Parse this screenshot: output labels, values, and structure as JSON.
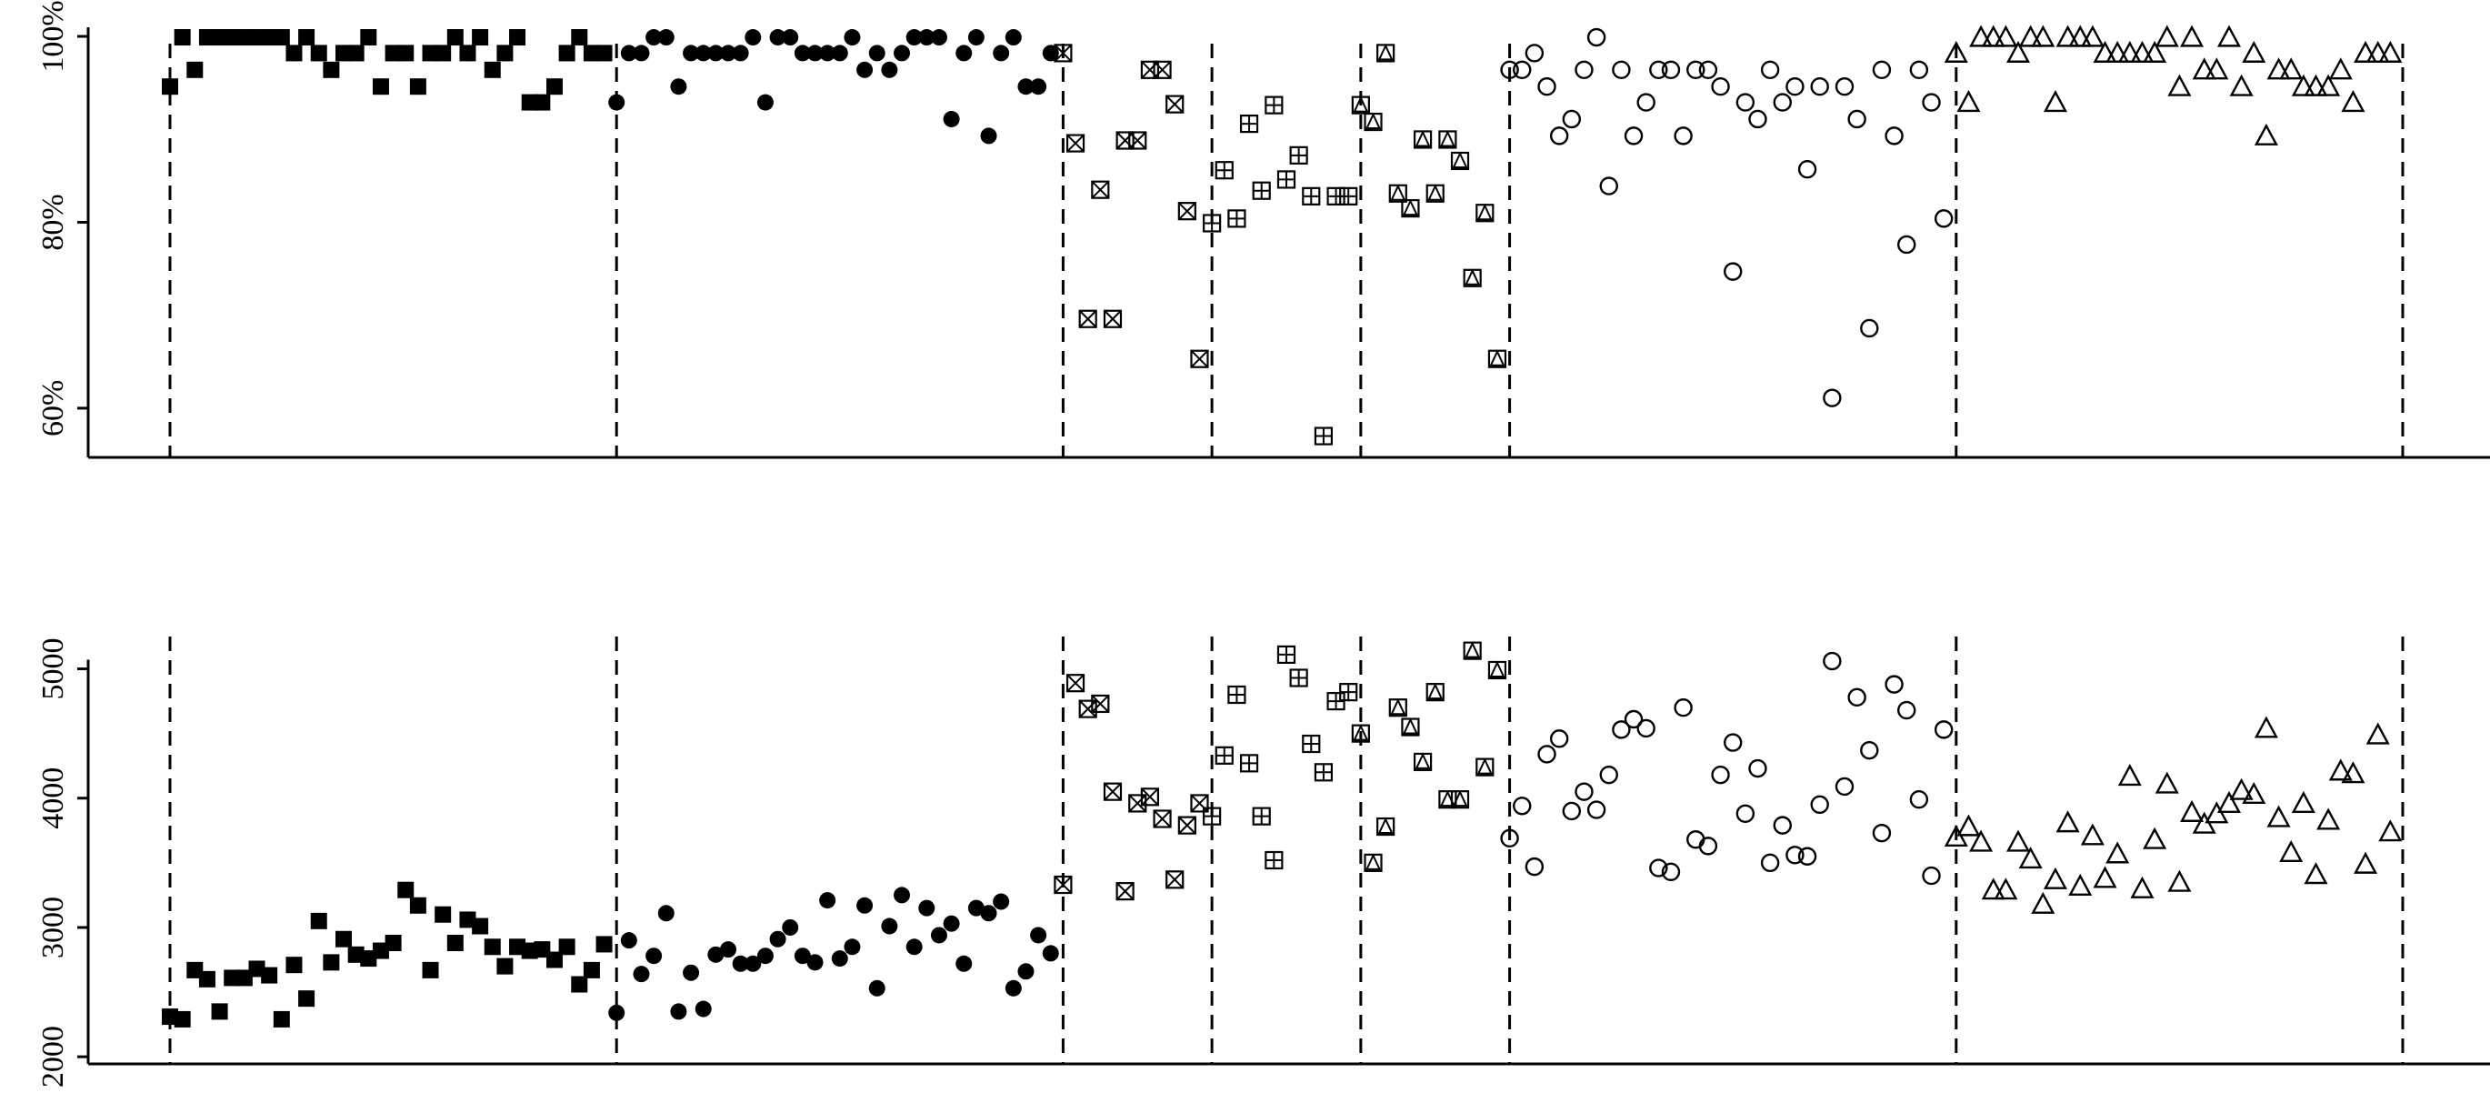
{
  "chart_data": [
    {
      "type": "scatter",
      "panel": "top",
      "ylim": [
        55,
        100
      ],
      "yticks": [
        60,
        80,
        100
      ],
      "ytick_labels": [
        "60%",
        "80%",
        "100%"
      ],
      "xlim": [
        1,
        181
      ],
      "separators": [
        1,
        37,
        73,
        85,
        97,
        109,
        145,
        181
      ],
      "grid": false,
      "series": [
        {
          "marker": "filled-square",
          "x": [
            1,
            2,
            3,
            4,
            5,
            6,
            7,
            8,
            9,
            10,
            11,
            12,
            13,
            14,
            15,
            16,
            17,
            18,
            19,
            20,
            21,
            22,
            23,
            24,
            25,
            26,
            27,
            28,
            29,
            30,
            31,
            32,
            33,
            34,
            35,
            36
          ],
          "values": [
            94.6,
            99.9,
            96.4,
            99.9,
            99.9,
            99.9,
            99.9,
            99.9,
            99.9,
            99.9,
            98.2,
            99.9,
            98.2,
            96.4,
            98.2,
            98.2,
            99.9,
            94.6,
            98.2,
            98.2,
            94.6,
            98.2,
            98.2,
            99.9,
            98.2,
            99.9,
            96.4,
            98.2,
            99.9,
            92.9,
            92.9,
            94.6,
            98.2,
            99.9,
            98.2,
            98.2
          ]
        },
        {
          "marker": "filled-circle",
          "x": [
            37,
            38,
            39,
            40,
            41,
            42,
            43,
            44,
            45,
            46,
            47,
            48,
            49,
            50,
            51,
            52,
            53,
            54,
            55,
            56,
            57,
            58,
            59,
            60,
            61,
            62,
            63,
            64,
            65,
            66,
            67,
            68,
            69,
            70,
            71,
            72
          ],
          "values": [
            92.9,
            98.2,
            98.2,
            99.9,
            99.9,
            94.6,
            98.2,
            98.2,
            98.2,
            98.2,
            98.2,
            99.9,
            92.9,
            99.9,
            99.9,
            98.2,
            98.2,
            98.2,
            98.2,
            99.9,
            96.4,
            98.2,
            96.4,
            98.2,
            99.9,
            99.9,
            99.9,
            91.1,
            98.2,
            99.9,
            89.3,
            98.2,
            99.9,
            94.6,
            94.6,
            98.2
          ]
        },
        {
          "marker": "square-x",
          "x": [
            73,
            74,
            75,
            76,
            77,
            78,
            79,
            80,
            81,
            82,
            83,
            84
          ],
          "values": [
            98.2,
            88.5,
            69.6,
            83.5,
            69.6,
            88.8,
            88.8,
            96.4,
            96.4,
            92.7,
            81.2,
            65.3
          ]
        },
        {
          "marker": "square-plus",
          "x": [
            85,
            86,
            87,
            88,
            89,
            90,
            91,
            92,
            93,
            94,
            95,
            96
          ],
          "values": [
            79.9,
            85.6,
            80.4,
            90.6,
            83.4,
            92.6,
            84.6,
            87.2,
            82.8,
            57.0,
            82.8,
            82.8
          ]
        },
        {
          "marker": "square-triangle",
          "x": [
            97,
            98,
            99,
            100,
            101,
            102,
            103,
            104,
            105,
            106,
            107,
            108
          ],
          "values": [
            92.6,
            90.8,
            98.2,
            83.1,
            81.5,
            88.9,
            83.1,
            88.9,
            86.6,
            74.0,
            81.0,
            65.3
          ]
        },
        {
          "marker": "open-circle",
          "x": [
            109,
            110,
            111,
            112,
            113,
            114,
            115,
            116,
            117,
            118,
            119,
            120,
            121,
            122,
            123,
            124,
            125,
            126,
            127,
            128,
            129,
            130,
            131,
            132,
            133,
            134,
            135,
            136,
            137,
            138,
            139,
            140,
            141,
            142,
            143,
            144
          ],
          "values": [
            96.4,
            96.4,
            98.2,
            94.6,
            89.3,
            91.1,
            96.4,
            99.9,
            83.9,
            96.4,
            89.3,
            92.9,
            96.4,
            96.4,
            89.3,
            96.4,
            96.4,
            94.6,
            74.7,
            92.9,
            91.1,
            96.4,
            92.9,
            94.6,
            85.7,
            94.6,
            61.1,
            94.6,
            91.1,
            68.6,
            96.4,
            89.3,
            77.6,
            96.4,
            92.9,
            80.4
          ]
        },
        {
          "marker": "open-triangle",
          "x": [
            145,
            146,
            147,
            148,
            149,
            150,
            151,
            152,
            153,
            154,
            155,
            156,
            157,
            158,
            159,
            160,
            161,
            162,
            163,
            164,
            165,
            166,
            167,
            168,
            169,
            170,
            171,
            172,
            173,
            174,
            175,
            176,
            177,
            178,
            179,
            180
          ],
          "values": [
            98.2,
            92.9,
            99.9,
            99.9,
            99.9,
            98.2,
            99.9,
            99.9,
            92.9,
            99.9,
            99.9,
            99.9,
            98.2,
            98.2,
            98.2,
            98.2,
            98.2,
            99.9,
            94.6,
            99.9,
            96.4,
            96.4,
            99.9,
            94.6,
            98.2,
            89.3,
            96.4,
            96.4,
            94.6,
            94.6,
            94.6,
            96.4,
            92.9,
            98.2,
            98.2,
            98.2
          ]
        }
      ]
    },
    {
      "type": "scatter",
      "panel": "bottom",
      "ylim": [
        1980,
        5250
      ],
      "yticks": [
        2000,
        3000,
        4000,
        5000
      ],
      "ytick_labels": [
        "2000",
        "3000",
        "4000",
        "5000"
      ],
      "xlim": [
        1,
        181
      ],
      "separators": [
        1,
        37,
        73,
        85,
        97,
        109,
        145,
        181
      ],
      "grid": false,
      "series": [
        {
          "marker": "filled-square",
          "x": [
            1,
            2,
            3,
            4,
            5,
            6,
            7,
            8,
            9,
            10,
            11,
            12,
            13,
            14,
            15,
            16,
            17,
            18,
            19,
            20,
            21,
            22,
            23,
            24,
            25,
            26,
            27,
            28,
            29,
            30,
            31,
            32,
            33,
            34,
            35,
            36
          ],
          "values": [
            2310,
            2290,
            2670,
            2600,
            2350,
            2610,
            2610,
            2680,
            2630,
            2290,
            2710,
            2450,
            3050,
            2730,
            2910,
            2790,
            2760,
            2820,
            2880,
            3290,
            3170,
            2670,
            3100,
            2880,
            3060,
            3010,
            2850,
            2700,
            2850,
            2820,
            2830,
            2750,
            2850,
            2560,
            2670,
            2870
          ]
        },
        {
          "marker": "filled-circle",
          "x": [
            37,
            38,
            39,
            40,
            41,
            42,
            43,
            44,
            45,
            46,
            47,
            48,
            49,
            50,
            51,
            52,
            53,
            54,
            55,
            56,
            57,
            58,
            59,
            60,
            61,
            62,
            63,
            64,
            65,
            66,
            67,
            68,
            69,
            70,
            71,
            72
          ],
          "values": [
            2340,
            2900,
            2640,
            2780,
            3110,
            2350,
            2650,
            2370,
            2790,
            2830,
            2720,
            2720,
            2780,
            2910,
            3000,
            2780,
            2730,
            3210,
            2760,
            2850,
            3170,
            2530,
            3010,
            3250,
            2850,
            3150,
            2940,
            3030,
            2720,
            3150,
            3110,
            3200,
            2530,
            2660,
            2940,
            2800
          ]
        },
        {
          "marker": "square-x",
          "x": [
            73,
            74,
            75,
            76,
            77,
            78,
            79,
            80,
            81,
            82,
            83,
            84
          ],
          "values": [
            3330,
            4890,
            4690,
            4730,
            4050,
            3280,
            3960,
            4010,
            3840,
            3370,
            3790,
            3960
          ]
        },
        {
          "marker": "square-plus",
          "x": [
            85,
            86,
            87,
            88,
            89,
            90,
            91,
            92,
            93,
            94,
            95,
            96
          ],
          "values": [
            3860,
            4330,
            4800,
            4270,
            3860,
            3520,
            5110,
            4930,
            4420,
            4200,
            4750,
            4820
          ]
        },
        {
          "marker": "square-triangle",
          "x": [
            97,
            98,
            99,
            100,
            101,
            102,
            103,
            104,
            105,
            106,
            107,
            108
          ],
          "values": [
            4500,
            3500,
            3780,
            4700,
            4550,
            4280,
            4820,
            3990,
            3990,
            5140,
            4240,
            4990
          ]
        },
        {
          "marker": "open-circle",
          "x": [
            109,
            110,
            111,
            112,
            113,
            114,
            115,
            116,
            117,
            118,
            119,
            120,
            121,
            122,
            123,
            124,
            125,
            126,
            127,
            128,
            129,
            130,
            131,
            132,
            133,
            134,
            135,
            136,
            137,
            138,
            139,
            140,
            141,
            142,
            143,
            144
          ],
          "values": [
            3690,
            3940,
            3470,
            4340,
            4460,
            3900,
            4050,
            3910,
            4180,
            4530,
            4610,
            4540,
            3460,
            3430,
            4700,
            3680,
            3630,
            4180,
            4430,
            3880,
            4230,
            3500,
            3790,
            3560,
            3550,
            3950,
            5060,
            4090,
            4780,
            4370,
            3730,
            4880,
            4680,
            3990,
            3400,
            4530
          ]
        },
        {
          "marker": "open-triangle",
          "x": [
            145,
            146,
            147,
            148,
            149,
            150,
            151,
            152,
            153,
            154,
            155,
            156,
            157,
            158,
            159,
            160,
            161,
            162,
            163,
            164,
            165,
            166,
            167,
            168,
            169,
            170,
            171,
            172,
            173,
            174,
            175,
            176,
            177,
            178,
            179,
            180
          ],
          "values": [
            3700,
            3780,
            3660,
            3290,
            3290,
            3660,
            3530,
            3180,
            3370,
            3810,
            3320,
            3710,
            3380,
            3570,
            4170,
            3300,
            3680,
            4110,
            3350,
            3890,
            3800,
            3880,
            3960,
            4060,
            4030,
            4540,
            3850,
            3580,
            3960,
            3410,
            3830,
            4210,
            4190,
            3490,
            4490,
            3740
          ]
        }
      ]
    }
  ]
}
